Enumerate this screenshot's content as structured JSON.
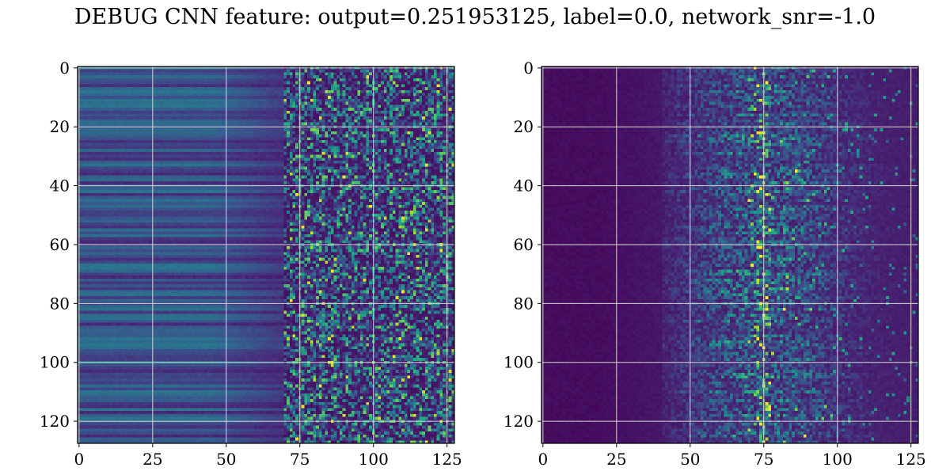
{
  "title": "DEBUG CNN feature: output=0.251953125, label=0.0, network_snr=-1.0",
  "chart_data": [
    {
      "type": "heatmap",
      "colormap": "viridis",
      "grid": true,
      "rows": 128,
      "cols": 128,
      "xlim": [
        -0.5,
        127.5
      ],
      "ylim": [
        127.5,
        -0.5
      ],
      "x_ticks": [
        0,
        25,
        50,
        75,
        100,
        125
      ],
      "y_ticks": [
        0,
        20,
        40,
        60,
        80,
        100,
        120
      ],
      "description_pattern": "left columns smooth horizontal bands, right columns (~75-127) noisy with bright speckles"
    },
    {
      "type": "heatmap",
      "colormap": "viridis",
      "grid": true,
      "rows": 128,
      "cols": 128,
      "xlim": [
        -0.5,
        127.5
      ],
      "ylim": [
        127.5,
        -0.5
      ],
      "x_ticks": [
        0,
        25,
        50,
        75,
        100,
        125
      ],
      "y_ticks": [
        0,
        20,
        40,
        60,
        80,
        100,
        120
      ],
      "description_pattern": "mostly dark, bright streaks centered around column ~75 with noise spreading to the right"
    }
  ]
}
